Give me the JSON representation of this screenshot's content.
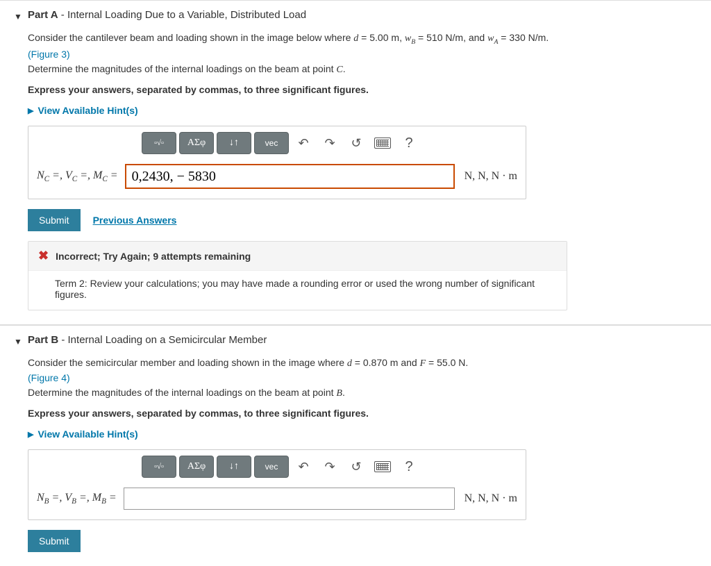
{
  "partA": {
    "label": "Part A",
    "title": " - Internal Loading Due to a Variable, Distributed Load",
    "p1_a": "Consider the cantilever beam and loading shown in the image below where ",
    "var_d": "d",
    "eq": " = ",
    "val_d": "5.00 m",
    "c": ", ",
    "var_wb": "w",
    "sub_b": "B",
    "val_wb": "510 N/m",
    "and": ", and ",
    "var_wa": "w",
    "sub_a": "A",
    "val_wa": "330 N/m",
    "dot": ".",
    "fig": "(Figure 3)",
    "p2_a": "Determine the magnitudes of the internal loadings on the beam at point ",
    "var_c": "C",
    "bold": "Express your answers, separated by commas, to three significant figures.",
    "hints": "View Available Hint(s)",
    "lhs_n": "N",
    "lhs_v": "V",
    "lhs_m": "M",
    "lhs_sub": "C",
    "lhs_sep1": " =, ",
    "lhs_sep2": " =, ",
    "lhs_end": " = ",
    "value": "0,2430, − 5830",
    "units": "N, N, N · m",
    "submit": "Submit",
    "prev": "Previous Answers",
    "fb_title": "Incorrect; Try Again; 9 attempts remaining",
    "fb_body": "Term 2: Review your calculations; you may have made a rounding error or used the wrong number of significant figures."
  },
  "partB": {
    "label": "Part B",
    "title": " - Internal Loading on a Semicircular Member",
    "p1_a": "Consider the semicircular member and loading shown in the image where ",
    "var_d": "d",
    "eq": " = ",
    "val_d": "0.870 m",
    "and": " and ",
    "var_f": "F",
    "val_f": "55.0 N",
    "dot": ".",
    "fig": "(Figure 4)",
    "p2_a": "Determine the magnitudes of the internal loadings on the beam at point ",
    "var_b": "B",
    "bold": "Express your answers, separated by commas, to three significant figures.",
    "hints": "View Available Hint(s)",
    "lhs_n": "N",
    "lhs_v": "V",
    "lhs_m": "M",
    "lhs_sub": "B",
    "lhs_sep1": " =, ",
    "lhs_sep2": " =, ",
    "lhs_end": " = ",
    "value": "",
    "units": "N, N, N · m",
    "submit": "Submit"
  },
  "tools": {
    "tmpl": "▫√▫",
    "greek": "ΑΣφ",
    "arrows": "↓↑",
    "vec": "vec",
    "undo": "↶",
    "redo": "↷",
    "reset": "↺",
    "help": "?"
  },
  "style": {
    "accent": "#0077aa",
    "submit_bg": "#2d7f9d",
    "error": "#c9302c",
    "input_border": "#c94a00"
  }
}
